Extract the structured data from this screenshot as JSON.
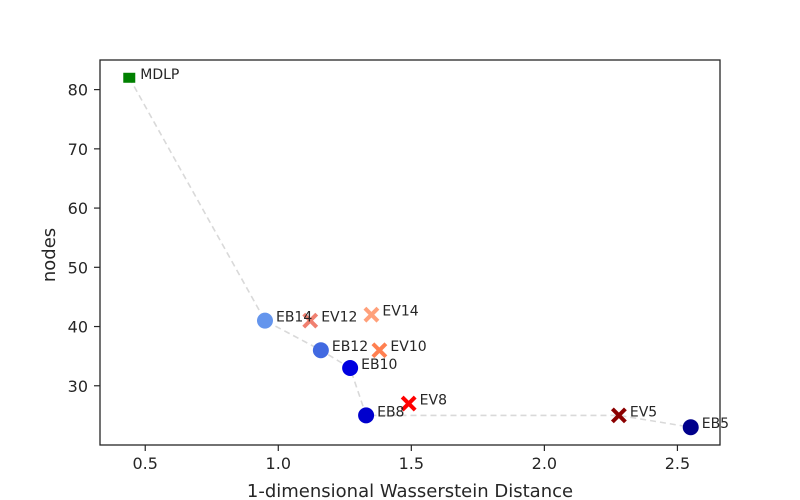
{
  "chart_data": {
    "type": "scatter",
    "title": "",
    "xlabel": "1-dimensional Wasserstein Distance",
    "ylabel": "nodes",
    "xlim": [
      0.33,
      2.66
    ],
    "ylim": [
      20,
      85
    ],
    "xticks": [
      "0.5",
      "1.0",
      "1.5",
      "2.0",
      "2.5"
    ],
    "yticks": [
      "30",
      "40",
      "50",
      "60",
      "70",
      "80"
    ],
    "grid": false,
    "legend": "none",
    "points": [
      {
        "label": "MDLP",
        "x": 0.44,
        "y": 82,
        "marker": "square",
        "color": "#008000"
      },
      {
        "label": "EB14",
        "x": 0.95,
        "y": 41,
        "marker": "circle",
        "color": "#6495ED"
      },
      {
        "label": "EB12",
        "x": 1.16,
        "y": 36,
        "marker": "circle",
        "color": "#4169E1"
      },
      {
        "label": "EB10",
        "x": 1.27,
        "y": 33,
        "marker": "circle",
        "color": "#0000E0"
      },
      {
        "label": "EB8",
        "x": 1.33,
        "y": 25,
        "marker": "circle",
        "color": "#0000CD"
      },
      {
        "label": "EB5",
        "x": 2.55,
        "y": 23,
        "marker": "circle",
        "color": "#00008B"
      },
      {
        "label": "EV14",
        "x": 1.35,
        "y": 42,
        "marker": "x",
        "color": "#FFA07A"
      },
      {
        "label": "EV12",
        "x": 1.12,
        "y": 41,
        "marker": "x",
        "color": "#F08070"
      },
      {
        "label": "EV10",
        "x": 1.38,
        "y": 36,
        "marker": "x",
        "color": "#FF7F50"
      },
      {
        "label": "EV8",
        "x": 1.49,
        "y": 27,
        "marker": "x",
        "color": "#FF0000"
      },
      {
        "label": "EV5",
        "x": 2.28,
        "y": 25,
        "marker": "x",
        "color": "#8B0000"
      }
    ],
    "frontier": {
      "style": "dashed",
      "color": "#D9D9D9",
      "x": [
        0.44,
        0.95,
        1.16,
        1.27,
        1.33,
        2.28,
        2.55
      ],
      "y": [
        82,
        41,
        36,
        33,
        25,
        25,
        23
      ]
    }
  }
}
